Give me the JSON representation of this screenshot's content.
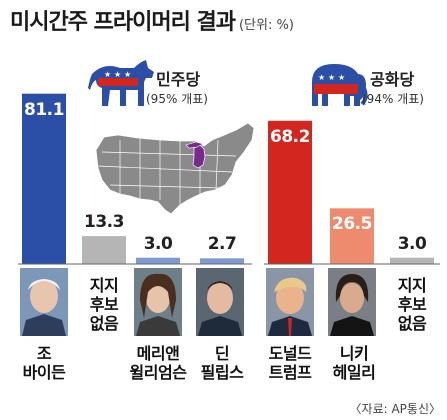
{
  "header": {
    "title": "미시간주 프라이머리 결과",
    "unit": "(단위: %)"
  },
  "parties": [
    {
      "name": "민주당",
      "count": "(95% 개표)",
      "color": "#2b4fa6"
    },
    {
      "name": "공화당",
      "count": "(94% 개표)",
      "color": "#d2261e"
    }
  ],
  "chart_data": [
    {
      "type": "bar",
      "party": "민주당",
      "categories": [
        "조 바이든",
        "지지 후보 없음",
        "메리앤 윌리엄슨",
        "딘 필립스"
      ],
      "values": [
        81.1,
        13.3,
        3.0,
        2.7
      ],
      "value_labels": [
        "81.1",
        "13.3",
        "3.0",
        "2.7"
      ],
      "label_lines": [
        [
          "조",
          "바이든"
        ],
        [
          "지지",
          "후보",
          "없음"
        ],
        [
          "메리앤",
          "윌리엄슨"
        ],
        [
          "딘",
          "필립스"
        ]
      ],
      "colors": [
        "#2b4fa6",
        "#b5b5b5",
        "#7f9ad3",
        "#7f9ad3"
      ]
    },
    {
      "type": "bar",
      "party": "공화당",
      "categories": [
        "도널드 트럼프",
        "니키 헤일리",
        "지지 후보 없음"
      ],
      "values": [
        68.2,
        26.5,
        3.0
      ],
      "value_labels": [
        "68.2",
        "26.5",
        "3.0"
      ],
      "label_lines": [
        [
          "도널드",
          "트럼프"
        ],
        [
          "니키",
          "헤일리"
        ],
        [
          "지지",
          "후보",
          "없음"
        ]
      ],
      "colors": [
        "#d2261e",
        "#ee8a6e",
        "#b5b5b5"
      ]
    }
  ],
  "icons": {
    "democrat": "donkey-icon",
    "republican": "elephant-icon",
    "map": "us-map-michigan-highlight",
    "michigan_color": "#7a2a8c"
  },
  "source": "〈자료: AP통신〉"
}
